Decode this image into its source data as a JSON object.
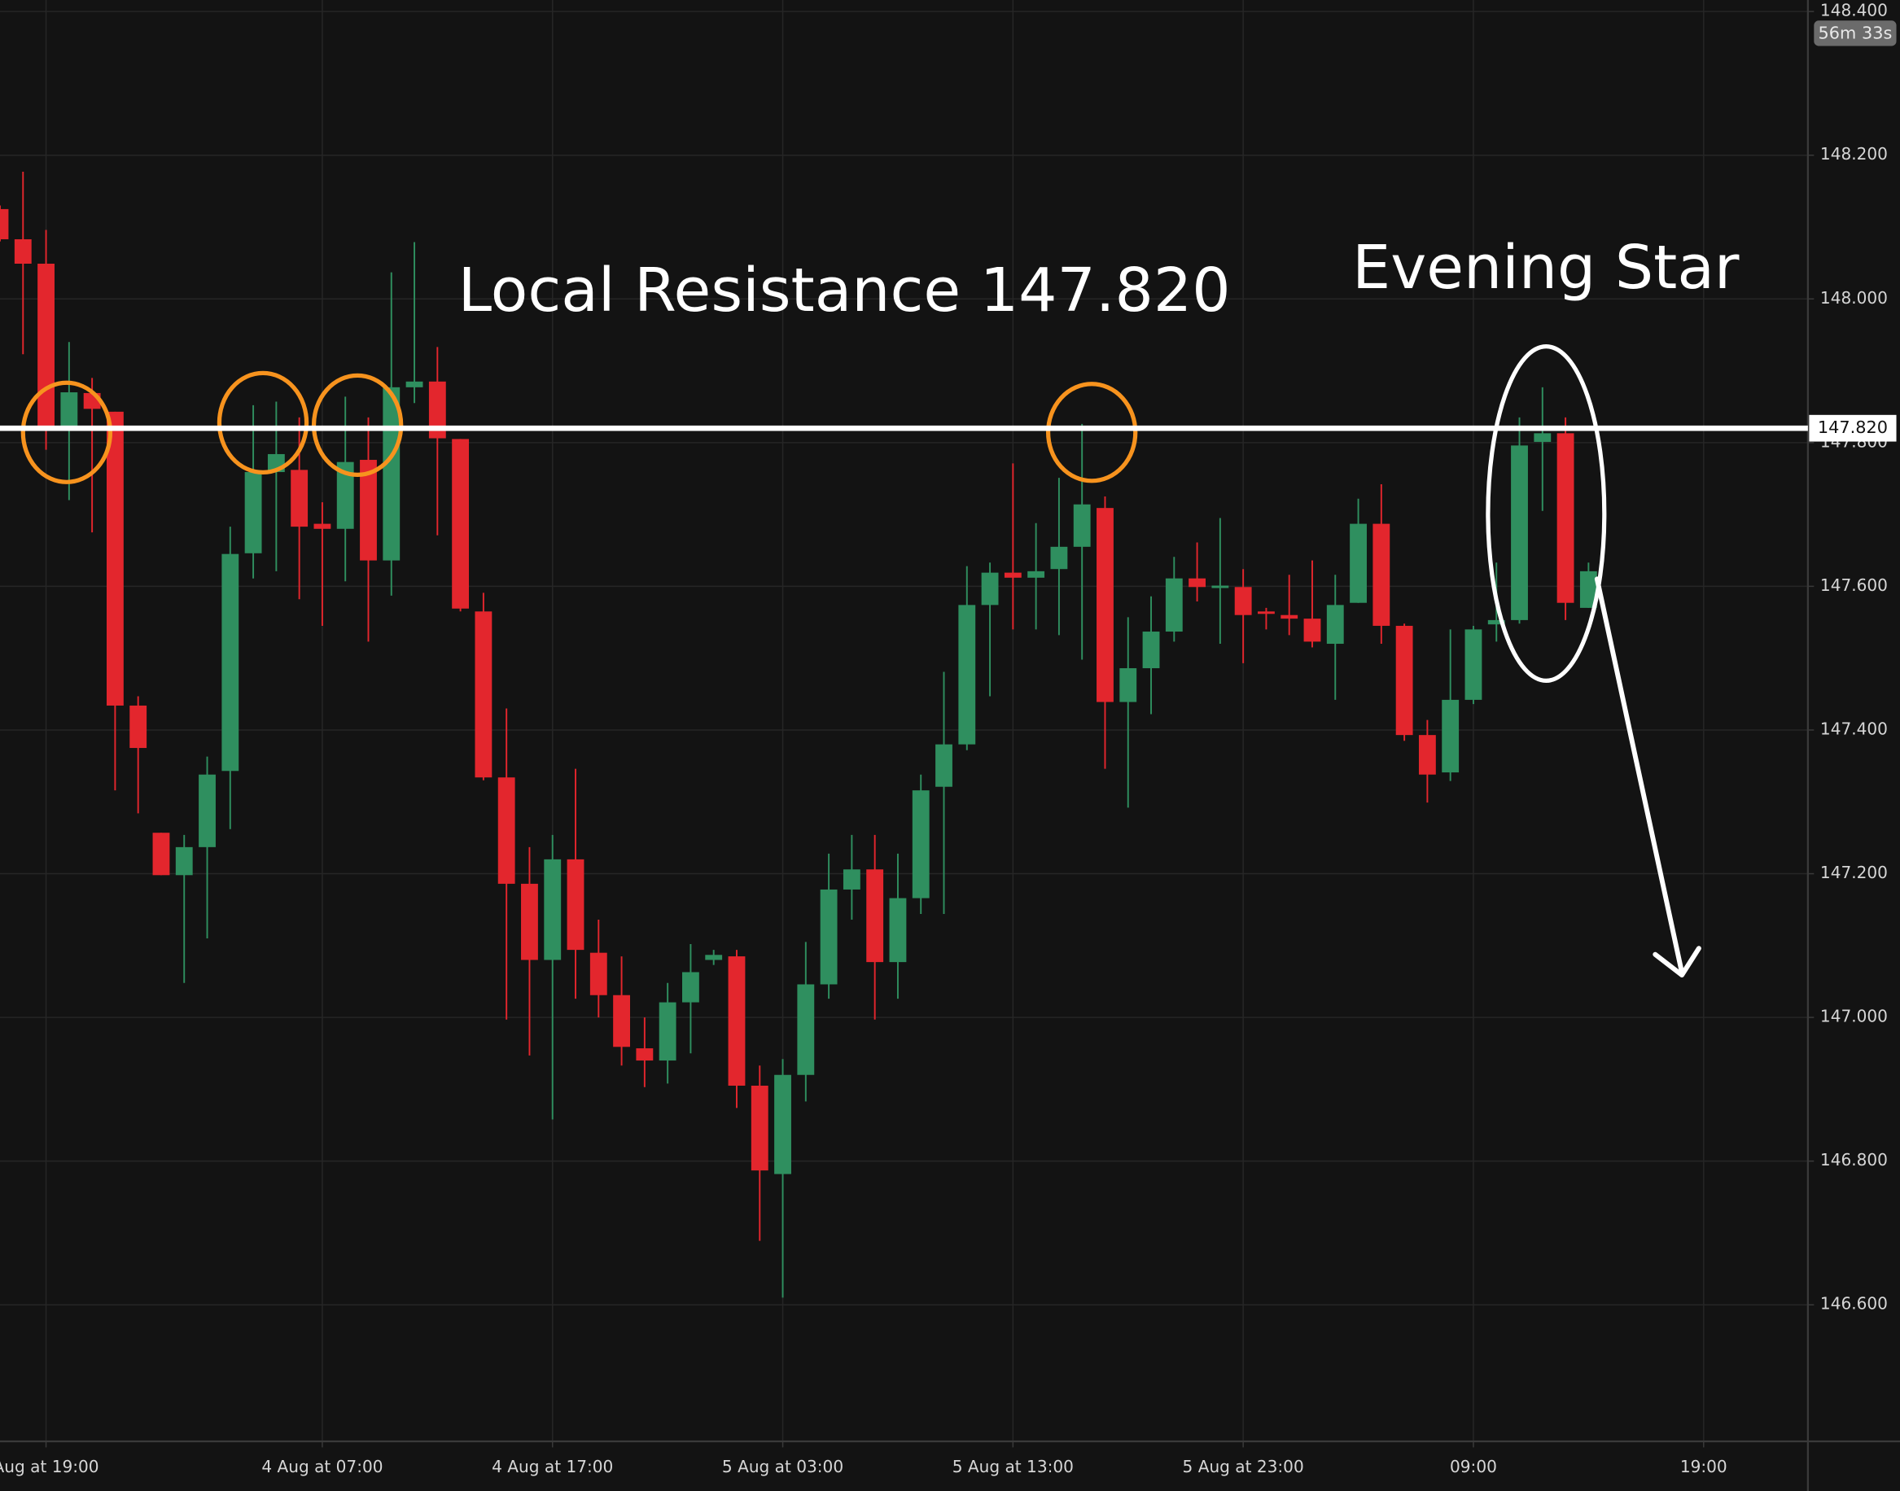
{
  "chart_data": {
    "type": "candlestick",
    "annotations": [
      "Local Resistance 147.820",
      "Evening Star"
    ],
    "resistance": {
      "value": 147.82,
      "label": "147.820"
    },
    "countdown": "56m 33s",
    "up_color": "#2f8f5f",
    "down_color": "#e3262d",
    "grid": true,
    "x": [
      -2,
      -1,
      0,
      1,
      2,
      3,
      4,
      5,
      6,
      7,
      8,
      9,
      10,
      11,
      12,
      13,
      14,
      15,
      16,
      17,
      18,
      19,
      20,
      21,
      22,
      23,
      24,
      25,
      26,
      27,
      28,
      29,
      30,
      31,
      32,
      33,
      34,
      35,
      36,
      37,
      38,
      39,
      40,
      41,
      42,
      43,
      44,
      45,
      46,
      47,
      48,
      49,
      50,
      51,
      52,
      53,
      54,
      55,
      56,
      57,
      58,
      59,
      60,
      61,
      62,
      63,
      64,
      65,
      66,
      67
    ],
    "open": [
      148.125,
      148.083,
      148.049,
      147.823,
      147.869,
      147.843,
      147.434,
      147.257,
      147.198,
      147.237,
      147.343,
      147.646,
      147.759,
      147.762,
      147.687,
      147.68,
      147.776,
      147.636,
      147.877,
      147.885,
      147.805,
      147.565,
      147.334,
      147.186,
      147.08,
      147.22,
      147.09,
      147.031,
      146.957,
      146.94,
      147.021,
      147.08,
      147.085,
      146.905,
      146.782,
      146.92,
      147.046,
      147.178,
      147.206,
      147.077,
      147.166,
      147.321,
      147.38,
      147.574,
      147.619,
      147.612,
      147.624,
      147.655,
      147.709,
      147.439,
      147.486,
      147.537,
      147.611,
      147.599,
      147.599,
      147.565,
      147.56,
      147.555,
      147.52,
      147.577,
      147.687,
      147.545,
      147.393,
      147.341,
      147.442,
      147.547,
      147.553,
      147.801,
      147.813,
      147.57
    ],
    "high": [
      148.13,
      148.177,
      148.096,
      147.94,
      147.89,
      147.843,
      147.447,
      147.257,
      147.254,
      147.363,
      147.683,
      147.852,
      147.857,
      147.835,
      147.717,
      147.864,
      147.835,
      148.037,
      148.079,
      147.933,
      147.805,
      147.591,
      147.43,
      147.237,
      147.254,
      147.346,
      147.136,
      147.085,
      147.0,
      147.048,
      147.102,
      147.094,
      147.094,
      146.933,
      146.942,
      147.105,
      147.228,
      147.254,
      147.254,
      147.228,
      147.338,
      147.481,
      147.628,
      147.633,
      147.771,
      147.688,
      147.751,
      147.826,
      147.725,
      147.557,
      147.586,
      147.641,
      147.661,
      147.695,
      147.624,
      147.57,
      147.616,
      147.636,
      147.616,
      147.722,
      147.742,
      147.548,
      147.414,
      147.54,
      147.545,
      147.633,
      147.835,
      147.877,
      147.835,
      147.633
    ],
    "low": [
      148.08,
      147.923,
      147.79,
      147.72,
      147.675,
      147.316,
      147.284,
      147.198,
      147.048,
      147.11,
      147.262,
      147.611,
      147.621,
      147.582,
      147.545,
      147.607,
      147.523,
      147.587,
      147.855,
      147.671,
      147.565,
      147.33,
      146.997,
      146.947,
      146.858,
      147.026,
      147.0,
      146.933,
      146.903,
      146.908,
      146.95,
      147.073,
      146.874,
      146.689,
      146.61,
      146.883,
      147.026,
      147.136,
      146.997,
      147.026,
      147.144,
      147.144,
      147.372,
      147.447,
      147.54,
      147.54,
      147.532,
      147.498,
      147.346,
      147.292,
      147.422,
      147.523,
      147.579,
      147.52,
      147.493,
      147.54,
      147.532,
      147.515,
      147.442,
      147.577,
      147.52,
      147.385,
      147.299,
      147.329,
      147.436,
      147.523,
      147.548,
      147.705,
      147.553,
      147.57
    ],
    "close": [
      148.083,
      148.049,
      147.823,
      147.87,
      147.847,
      147.434,
      147.375,
      147.198,
      147.237,
      147.338,
      147.645,
      147.759,
      147.784,
      147.683,
      147.68,
      147.773,
      147.636,
      147.877,
      147.885,
      147.806,
      147.569,
      147.334,
      147.186,
      147.08,
      147.22,
      147.094,
      147.031,
      146.959,
      146.94,
      147.021,
      147.063,
      147.087,
      146.905,
      146.787,
      146.92,
      147.046,
      147.178,
      147.206,
      147.077,
      147.166,
      147.316,
      147.38,
      147.574,
      147.619,
      147.612,
      147.621,
      147.655,
      147.714,
      147.439,
      147.486,
      147.537,
      147.611,
      147.599,
      147.601,
      147.56,
      147.562,
      147.555,
      147.523,
      147.574,
      147.687,
      147.545,
      147.393,
      147.338,
      147.442,
      147.54,
      147.553,
      147.796,
      147.813,
      147.577,
      147.621
    ],
    "xlim": [
      -2,
      76.53
    ],
    "xticks": [
      {
        "value": 0,
        "label": "Aug at 19:00"
      },
      {
        "value": 12,
        "label": "4 Aug at 07:00"
      },
      {
        "value": 22,
        "label": "4 Aug at 17:00"
      },
      {
        "value": 32,
        "label": "5 Aug at 03:00"
      },
      {
        "value": 42,
        "label": "5 Aug at 13:00"
      },
      {
        "value": 52,
        "label": "5 Aug at 23:00"
      },
      {
        "value": 62,
        "label": "09:00"
      },
      {
        "value": 72,
        "label": "19:00"
      }
    ],
    "ylim": [
      146.41,
      148.416
    ],
    "yticks": [
      {
        "value": 146.6,
        "label": "146.600"
      },
      {
        "value": 146.8,
        "label": "146.800"
      },
      {
        "value": 147.0,
        "label": "147.000"
      },
      {
        "value": 147.2,
        "label": "147.200"
      },
      {
        "value": 147.4,
        "label": "147.400"
      },
      {
        "value": 147.6,
        "label": "147.600"
      },
      {
        "value": 147.8,
        "label": "147.800"
      },
      {
        "value": 148.0,
        "label": "148.000"
      },
      {
        "value": 148.2,
        "label": "148.200"
      },
      {
        "value": 148.4,
        "label": "148.400"
      }
    ]
  }
}
